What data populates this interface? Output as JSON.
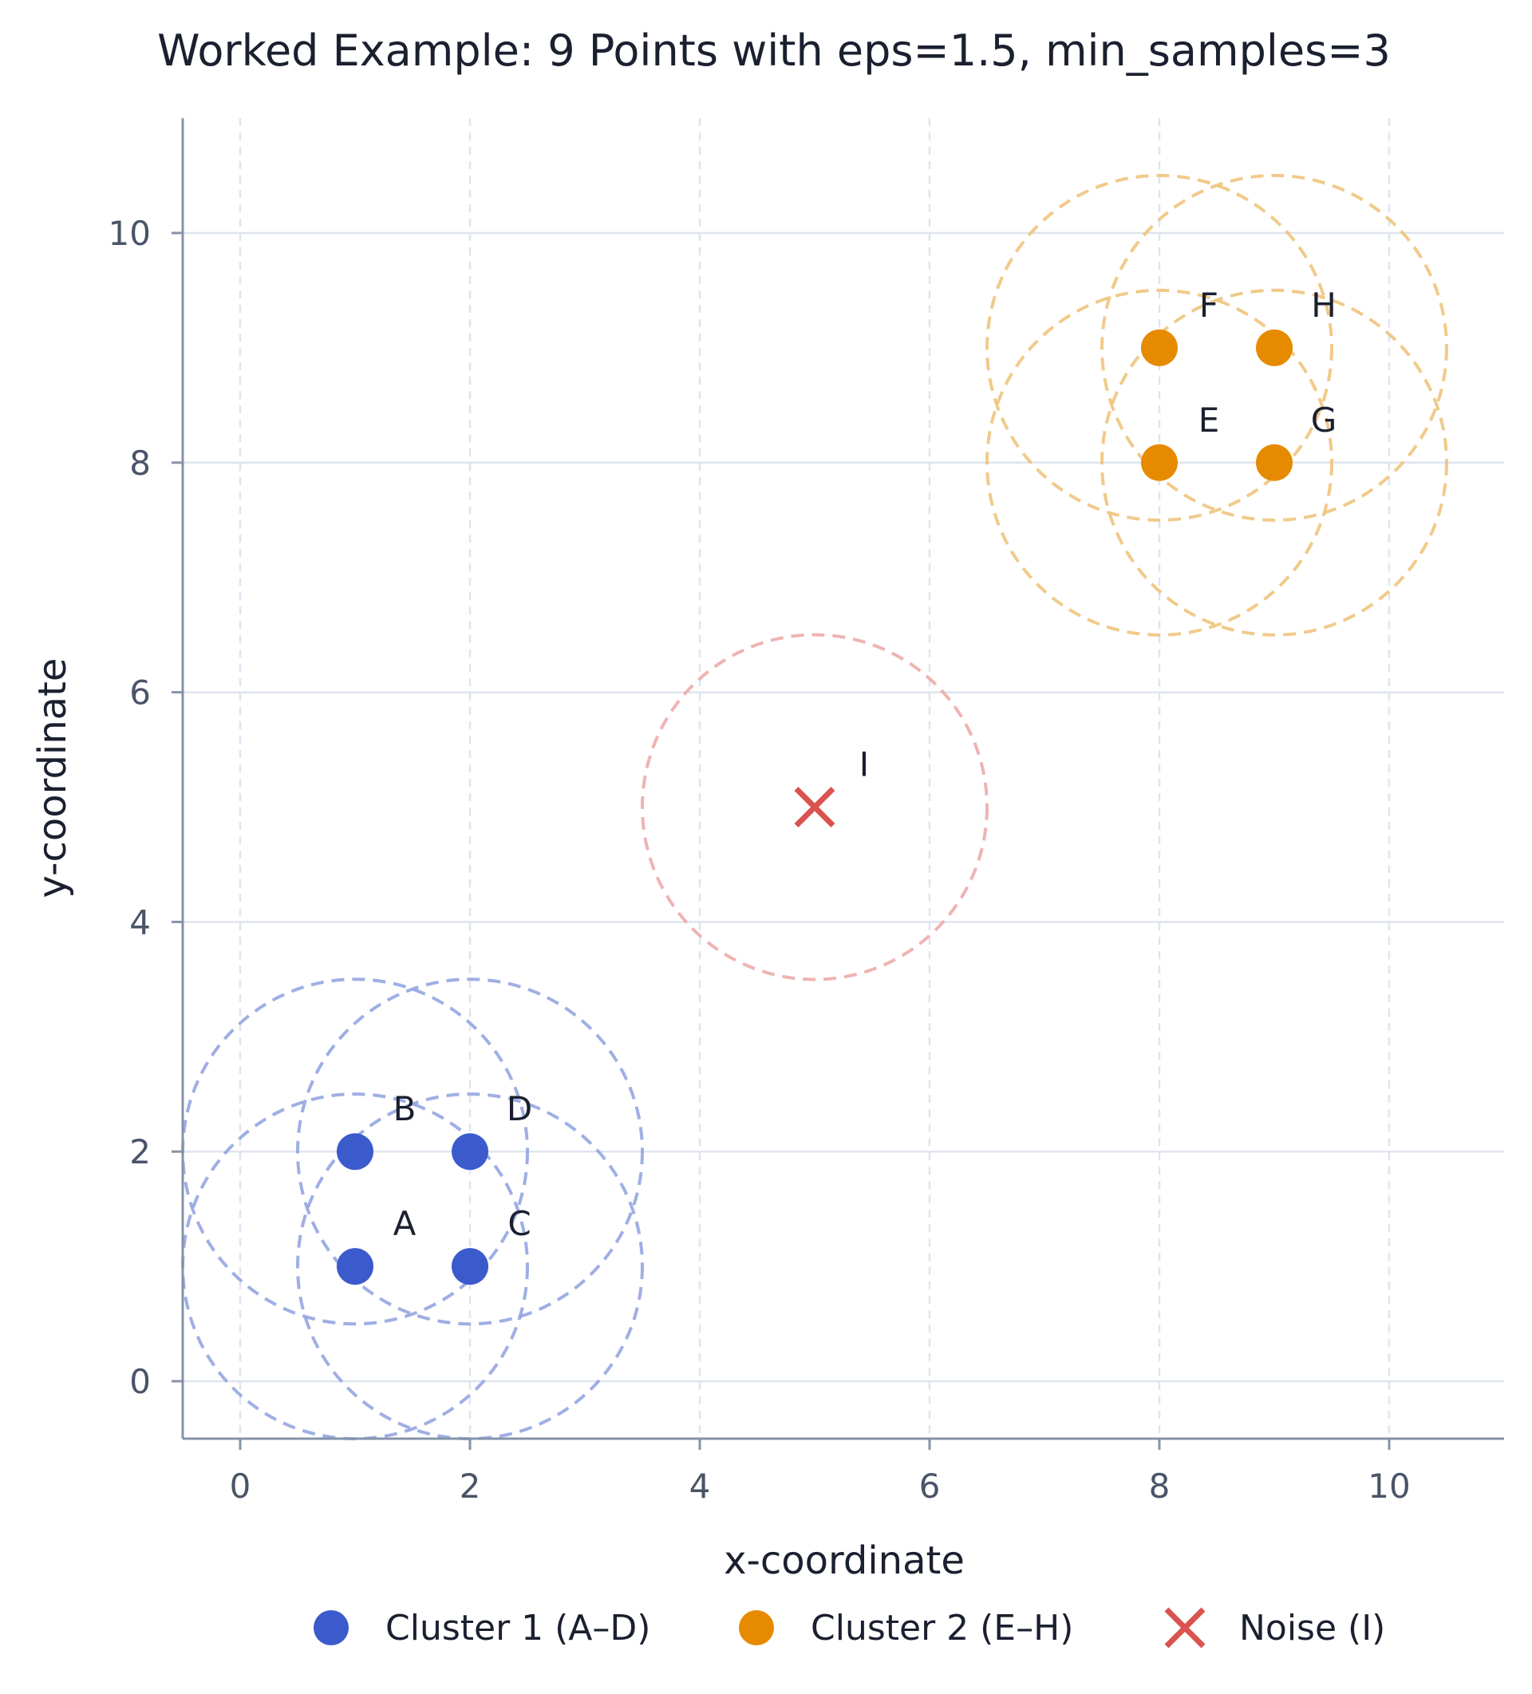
{
  "chart_data": {
    "type": "scatter",
    "title": "Worked Example: 9 Points with eps=1.5, min_samples=3",
    "xlabel": "x-coordinate",
    "ylabel": "y-coordinate",
    "xlim": [
      -0.5,
      11
    ],
    "ylim": [
      -0.5,
      11
    ],
    "xticks": [
      0,
      2,
      4,
      6,
      8,
      10
    ],
    "yticks": [
      0,
      2,
      4,
      6,
      8,
      10
    ],
    "grid": true,
    "eps": 1.5,
    "legend_position": "bottom",
    "series": [
      {
        "name": "Cluster 1 (A–D)",
        "marker": "circle",
        "color": "#3b5bcc",
        "ring_color": "#8ea1df",
        "points": [
          {
            "label": "A",
            "x": 1,
            "y": 1
          },
          {
            "label": "B",
            "x": 1,
            "y": 2
          },
          {
            "label": "C",
            "x": 2,
            "y": 1
          },
          {
            "label": "D",
            "x": 2,
            "y": 2
          }
        ]
      },
      {
        "name": "Cluster 2 (E–H)",
        "marker": "circle",
        "color": "#e68a00",
        "ring_color": "#efc176",
        "points": [
          {
            "label": "E",
            "x": 8,
            "y": 8
          },
          {
            "label": "F",
            "x": 8,
            "y": 9
          },
          {
            "label": "G",
            "x": 9,
            "y": 8
          },
          {
            "label": "H",
            "x": 9,
            "y": 9
          }
        ]
      },
      {
        "name": "Noise (I)",
        "marker": "x",
        "color": "#d9534f",
        "ring_color": "#eba7a5",
        "points": [
          {
            "label": "I",
            "x": 5,
            "y": 5
          }
        ]
      }
    ]
  }
}
